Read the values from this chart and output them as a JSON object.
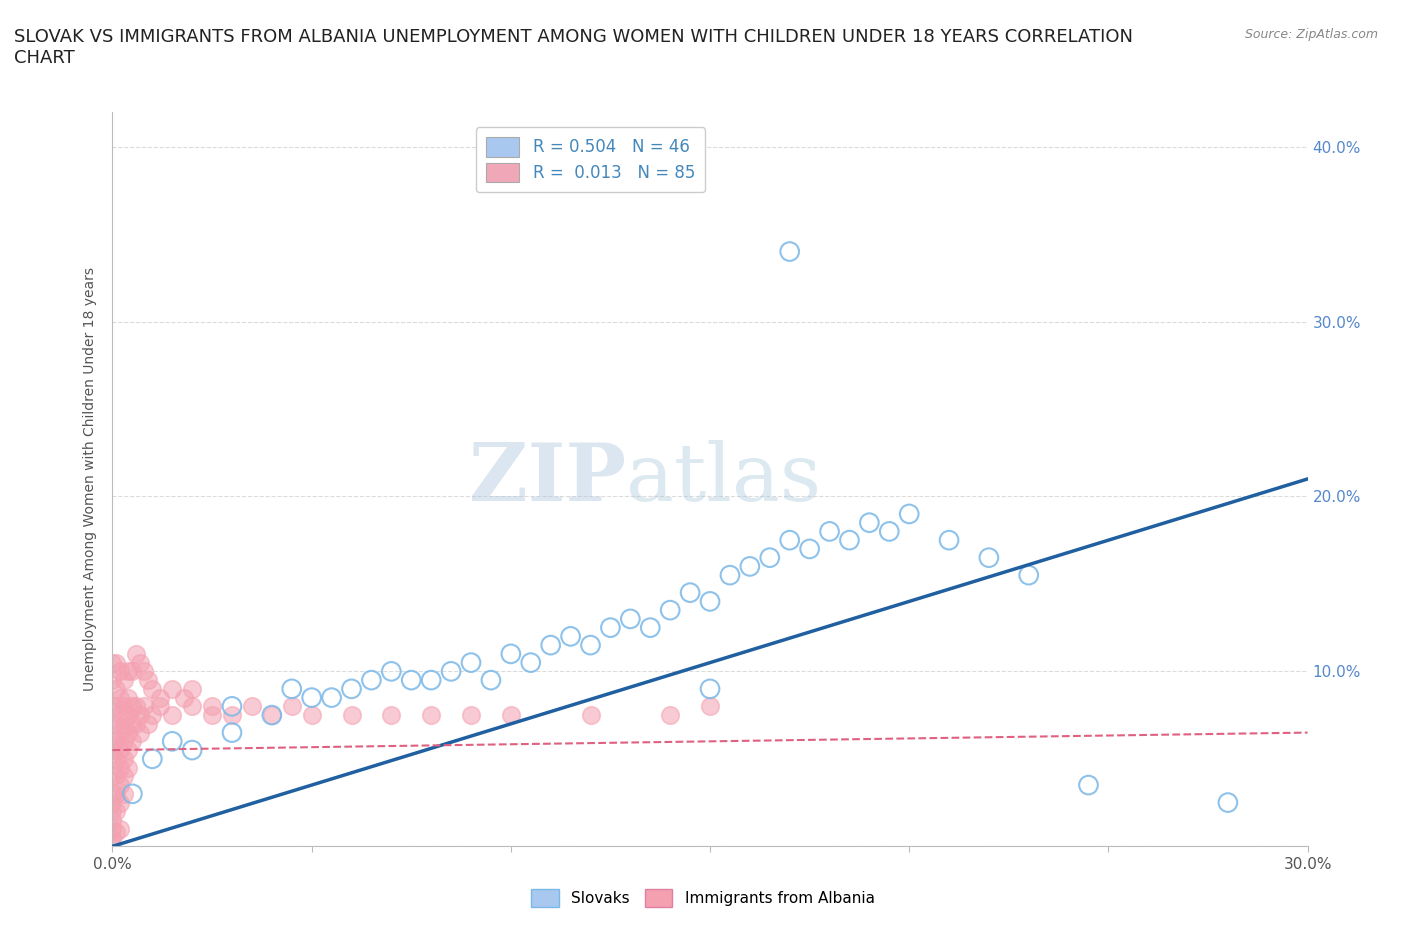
{
  "title": "SLOVAK VS IMMIGRANTS FROM ALBANIA UNEMPLOYMENT AMONG WOMEN WITH CHILDREN UNDER 18 YEARS CORRELATION\nCHART",
  "source": "Source: ZipAtlas.com",
  "ylabel": "Unemployment Among Women with Children Under 18 years",
  "xlim": [
    0.0,
    0.3
  ],
  "ylim": [
    0.0,
    0.42
  ],
  "yticks": [
    0.0,
    0.1,
    0.2,
    0.3,
    0.4
  ],
  "xticks": [
    0.0,
    0.05,
    0.1,
    0.15,
    0.2,
    0.25,
    0.3
  ],
  "xtick_labels": [
    "0.0%",
    "",
    "",
    "",
    "",
    "",
    "30.0%"
  ],
  "ytick_labels_right": [
    "",
    "10.0%",
    "20.0%",
    "30.0%",
    "40.0%"
  ],
  "legend_entries": [
    {
      "label": "R = 0.504   N = 46",
      "color": "#a8c8f0"
    },
    {
      "label": "R =  0.013   N = 85",
      "color": "#f0a8b8"
    }
  ],
  "watermark": "ZIPatlas",
  "slovak_color": "#7ab8e8",
  "albanian_color": "#f4a0b0",
  "slovak_line_color": "#2060a0",
  "albanian_line_color": "#e06080",
  "slovak_points": [
    [
      0.005,
      0.03
    ],
    [
      0.01,
      0.05
    ],
    [
      0.015,
      0.06
    ],
    [
      0.02,
      0.055
    ],
    [
      0.03,
      0.065
    ],
    [
      0.03,
      0.08
    ],
    [
      0.04,
      0.075
    ],
    [
      0.045,
      0.09
    ],
    [
      0.05,
      0.085
    ],
    [
      0.055,
      0.085
    ],
    [
      0.06,
      0.09
    ],
    [
      0.065,
      0.095
    ],
    [
      0.07,
      0.1
    ],
    [
      0.075,
      0.095
    ],
    [
      0.08,
      0.095
    ],
    [
      0.085,
      0.1
    ],
    [
      0.09,
      0.105
    ],
    [
      0.095,
      0.095
    ],
    [
      0.1,
      0.11
    ],
    [
      0.105,
      0.105
    ],
    [
      0.11,
      0.115
    ],
    [
      0.115,
      0.12
    ],
    [
      0.12,
      0.115
    ],
    [
      0.125,
      0.125
    ],
    [
      0.13,
      0.13
    ],
    [
      0.135,
      0.125
    ],
    [
      0.14,
      0.135
    ],
    [
      0.145,
      0.145
    ],
    [
      0.15,
      0.14
    ],
    [
      0.155,
      0.155
    ],
    [
      0.16,
      0.16
    ],
    [
      0.165,
      0.165
    ],
    [
      0.17,
      0.175
    ],
    [
      0.175,
      0.17
    ],
    [
      0.18,
      0.18
    ],
    [
      0.185,
      0.175
    ],
    [
      0.19,
      0.185
    ],
    [
      0.195,
      0.18
    ],
    [
      0.2,
      0.19
    ],
    [
      0.21,
      0.175
    ],
    [
      0.22,
      0.165
    ],
    [
      0.23,
      0.155
    ],
    [
      0.245,
      0.035
    ],
    [
      0.17,
      0.34
    ],
    [
      0.28,
      0.025
    ],
    [
      0.15,
      0.09
    ]
  ],
  "albanian_points": [
    [
      0.0,
      0.06
    ],
    [
      0.0,
      0.07
    ],
    [
      0.0,
      0.05
    ],
    [
      0.0,
      0.08
    ],
    [
      0.0,
      0.04
    ],
    [
      0.0,
      0.03
    ],
    [
      0.0,
      0.025
    ],
    [
      0.0,
      0.02
    ],
    [
      0.0,
      0.015
    ],
    [
      0.0,
      0.01
    ],
    [
      0.001,
      0.09
    ],
    [
      0.001,
      0.08
    ],
    [
      0.001,
      0.07
    ],
    [
      0.001,
      0.06
    ],
    [
      0.001,
      0.05
    ],
    [
      0.001,
      0.04
    ],
    [
      0.001,
      0.03
    ],
    [
      0.001,
      0.02
    ],
    [
      0.002,
      0.085
    ],
    [
      0.002,
      0.075
    ],
    [
      0.002,
      0.065
    ],
    [
      0.002,
      0.055
    ],
    [
      0.002,
      0.045
    ],
    [
      0.002,
      0.035
    ],
    [
      0.002,
      0.025
    ],
    [
      0.003,
      0.08
    ],
    [
      0.003,
      0.07
    ],
    [
      0.003,
      0.06
    ],
    [
      0.003,
      0.05
    ],
    [
      0.003,
      0.04
    ],
    [
      0.003,
      0.03
    ],
    [
      0.004,
      0.085
    ],
    [
      0.004,
      0.075
    ],
    [
      0.004,
      0.065
    ],
    [
      0.004,
      0.055
    ],
    [
      0.004,
      0.045
    ],
    [
      0.005,
      0.08
    ],
    [
      0.005,
      0.07
    ],
    [
      0.005,
      0.06
    ],
    [
      0.006,
      0.08
    ],
    [
      0.006,
      0.07
    ],
    [
      0.007,
      0.075
    ],
    [
      0.007,
      0.065
    ],
    [
      0.008,
      0.08
    ],
    [
      0.009,
      0.07
    ],
    [
      0.01,
      0.075
    ],
    [
      0.012,
      0.08
    ],
    [
      0.015,
      0.075
    ],
    [
      0.02,
      0.08
    ],
    [
      0.025,
      0.075
    ],
    [
      0.005,
      0.1
    ],
    [
      0.006,
      0.11
    ],
    [
      0.007,
      0.105
    ],
    [
      0.008,
      0.1
    ],
    [
      0.009,
      0.095
    ],
    [
      0.01,
      0.09
    ],
    [
      0.012,
      0.085
    ],
    [
      0.003,
      0.095
    ],
    [
      0.004,
      0.1
    ],
    [
      0.002,
      0.1
    ],
    [
      0.001,
      0.105
    ],
    [
      0.0,
      0.095
    ],
    [
      0.0,
      0.105
    ],
    [
      0.015,
      0.09
    ],
    [
      0.018,
      0.085
    ],
    [
      0.02,
      0.09
    ],
    [
      0.025,
      0.08
    ],
    [
      0.03,
      0.075
    ],
    [
      0.035,
      0.08
    ],
    [
      0.04,
      0.075
    ],
    [
      0.045,
      0.08
    ],
    [
      0.05,
      0.075
    ],
    [
      0.06,
      0.075
    ],
    [
      0.07,
      0.075
    ],
    [
      0.08,
      0.075
    ],
    [
      0.09,
      0.075
    ],
    [
      0.1,
      0.075
    ],
    [
      0.12,
      0.075
    ],
    [
      0.14,
      0.075
    ],
    [
      0.15,
      0.08
    ],
    [
      0.0,
      0.0
    ],
    [
      0.0,
      0.005
    ],
    [
      0.001,
      0.008
    ],
    [
      0.002,
      0.01
    ],
    [
      0.0,
      0.055
    ]
  ],
  "background_color": "#ffffff",
  "grid_color": "#cccccc",
  "title_fontsize": 13,
  "axis_label_fontsize": 10,
  "tick_fontsize": 11
}
